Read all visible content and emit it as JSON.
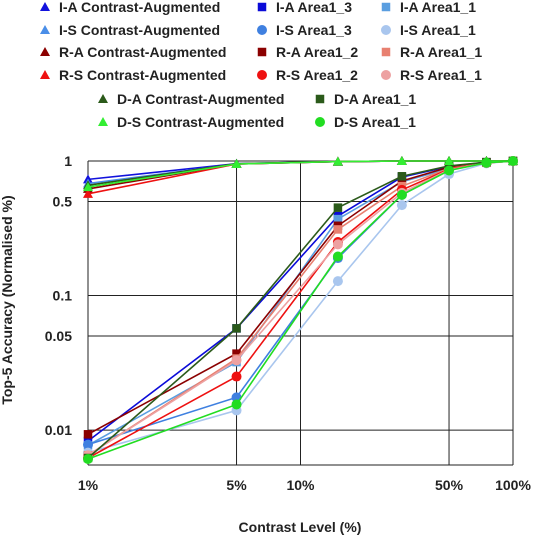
{
  "chart_data": {
    "type": "line",
    "xlabel": "Contrast Level (%)",
    "ylabel": "Top-5 Accuracy  (Normalised %)",
    "x_scale": "log",
    "y_scale": "log",
    "xlim": [
      1,
      100
    ],
    "ylim": [
      0.0055,
      1
    ],
    "x": [
      1,
      5,
      15,
      30,
      50,
      75,
      100
    ],
    "xticks": [
      1,
      5,
      10,
      50,
      100
    ],
    "xtick_labels": [
      "1%",
      "5%",
      "10%",
      "50%",
      "100%"
    ],
    "yticks": [
      0.01,
      0.05,
      0.1,
      0.5,
      1
    ],
    "ytick_labels": [
      "0.01",
      "0.05",
      "0.1",
      "0.5",
      "1"
    ],
    "grid": true,
    "legend_position": "top",
    "series": [
      {
        "name": "I-A Contrast-Augmented",
        "color": "#1212dd",
        "marker": "triangle",
        "values": [
          0.73,
          0.955,
          0.99,
          1,
          1,
          1,
          1
        ]
      },
      {
        "name": "I-A Area1_3",
        "color": "#0b0bd8",
        "marker": "square",
        "values": [
          0.0083,
          0.057,
          0.39,
          0.76,
          0.91,
          0.98,
          1
        ]
      },
      {
        "name": "I-A Area1_1",
        "color": "#5a9ee0",
        "marker": "square",
        "values": [
          0.0077,
          0.032,
          0.37,
          0.7,
          0.88,
          0.97,
          1
        ]
      },
      {
        "name": "I-S Contrast-Augmented",
        "color": "#4a8ee8",
        "marker": "triangle",
        "values": [
          0.68,
          0.95,
          0.99,
          1,
          1,
          1,
          1
        ]
      },
      {
        "name": "I-S Area1_3",
        "color": "#3f80e0",
        "marker": "circle",
        "values": [
          0.0078,
          0.0175,
          0.19,
          0.56,
          0.86,
          0.97,
          1
        ]
      },
      {
        "name": "I-S Area1_1",
        "color": "#a9c6ee",
        "marker": "circle",
        "values": [
          0.0068,
          0.014,
          0.128,
          0.47,
          0.8,
          0.96,
          1
        ]
      },
      {
        "name": "R-A Contrast-Augmented",
        "color": "#8b0000",
        "marker": "triangle",
        "values": [
          0.62,
          0.95,
          0.99,
          1,
          1,
          1,
          1
        ]
      },
      {
        "name": "R-A Area1_2",
        "color": "#8b0000",
        "marker": "square",
        "values": [
          0.0093,
          0.037,
          0.33,
          0.71,
          0.9,
          0.98,
          1
        ]
      },
      {
        "name": "R-A Area1_1",
        "color": "#e88070",
        "marker": "square",
        "values": [
          0.0065,
          0.034,
          0.31,
          0.65,
          0.88,
          0.97,
          1
        ]
      },
      {
        "name": "R-S Contrast-Augmented",
        "color": "#ee1111",
        "marker": "triangle",
        "values": [
          0.57,
          0.95,
          0.99,
          1,
          1,
          1,
          1
        ]
      },
      {
        "name": "R-S Area1_2",
        "color": "#ee1111",
        "marker": "circle",
        "values": [
          0.0062,
          0.025,
          0.25,
          0.61,
          0.87,
          0.97,
          1
        ]
      },
      {
        "name": "R-S Area1_1",
        "color": "#eda1a1",
        "marker": "circle",
        "values": [
          0.0065,
          0.033,
          0.24,
          0.58,
          0.86,
          0.97,
          1
        ]
      },
      {
        "name": "D-A Contrast-Augmented",
        "color": "#2b5a1a",
        "marker": "triangle",
        "values": [
          0.66,
          0.955,
          0.99,
          1,
          1,
          1,
          1
        ]
      },
      {
        "name": "D-A Area1_1",
        "color": "#2b5a1a",
        "marker": "square",
        "values": [
          0.0062,
          0.057,
          0.45,
          0.77,
          0.92,
          0.98,
          1
        ]
      },
      {
        "name": "D-S Contrast-Augmented",
        "color": "#33ee33",
        "marker": "triangle",
        "values": [
          0.64,
          0.95,
          0.99,
          1,
          1,
          1,
          1
        ]
      },
      {
        "name": "D-S Area1_1",
        "color": "#22dd22",
        "marker": "circle",
        "values": [
          0.0061,
          0.0155,
          0.195,
          0.56,
          0.85,
          0.97,
          1
        ]
      }
    ]
  }
}
